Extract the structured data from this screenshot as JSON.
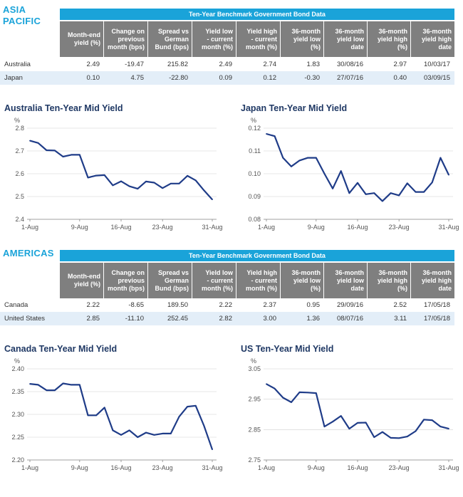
{
  "asia": {
    "region_label": [
      "ASIA",
      "PACIFIC"
    ],
    "table_title": "Ten-Year Benchmark Government Bond Data",
    "headers": [
      [
        "Month-end",
        "yield (%)"
      ],
      [
        "Change on",
        "previous",
        "month (bps)"
      ],
      [
        "Spread vs",
        "German",
        "Bund (bps)"
      ],
      [
        "Yield low",
        "- current",
        "month (%)"
      ],
      [
        "Yield high",
        "- current",
        "month (%)"
      ],
      [
        "36-month",
        "yield low",
        "(%)"
      ],
      [
        "36-month",
        "yield low",
        "date"
      ],
      [
        "36-month",
        "yield high",
        "(%)"
      ],
      [
        "36-month",
        "yield high",
        "date"
      ]
    ],
    "rows": [
      {
        "label": "Australia",
        "values": [
          "2.49",
          "-19.47",
          "215.82",
          "2.49",
          "2.74",
          "1.83",
          "30/08/16",
          "2.97",
          "10/03/17"
        ]
      },
      {
        "label": "Japan",
        "values": [
          "0.10",
          "4.75",
          "-22.80",
          "0.09",
          "0.12",
          "-0.30",
          "27/07/16",
          "0.40",
          "03/09/15"
        ]
      }
    ]
  },
  "americas": {
    "region_label": [
      "AMERICAS"
    ],
    "table_title": "Ten-Year Benchmark Government Bond Data",
    "headers": [
      [
        "Month-end",
        "yield (%)"
      ],
      [
        "Change on",
        "previous",
        "month (bps)"
      ],
      [
        "Spread vs",
        "German",
        "Bund (bps)"
      ],
      [
        "Yield low",
        "- current",
        "month (%)"
      ],
      [
        "Yield high",
        "- current",
        "month (%)"
      ],
      [
        "36-month",
        "yield low",
        "(%)"
      ],
      [
        "36-month",
        "yield low",
        "date"
      ],
      [
        "36-month",
        "yield high",
        "(%)"
      ],
      [
        "36-month",
        "yield high",
        "date"
      ]
    ],
    "rows": [
      {
        "label": "Canada",
        "values": [
          "2.22",
          "-8.65",
          "189.50",
          "2.22",
          "2.37",
          "0.95",
          "29/09/16",
          "2.52",
          "17/05/18"
        ]
      },
      {
        "label": "United States",
        "values": [
          "2.85",
          "-11.10",
          "252.45",
          "2.82",
          "3.00",
          "1.36",
          "08/07/16",
          "3.11",
          "17/05/18"
        ]
      }
    ]
  },
  "colors": {
    "accent": "#1aa3d9",
    "line": "#1f3c88",
    "header_bg": "#7f7f7f",
    "row_alt": "#e3eef8"
  },
  "chart_data": [
    {
      "type": "line",
      "title": "Australia Ten-Year Mid Yield",
      "ylabel": "%",
      "ylim": [
        2.4,
        2.8
      ],
      "yticks": [
        "2.4",
        "2.5",
        "2.6",
        "2.7",
        "2.8"
      ],
      "xticks": [
        "1-Aug",
        "9-Aug",
        "16-Aug",
        "23-Aug",
        "31-Aug"
      ],
      "xtick_index": [
        0,
        6,
        11,
        16,
        22
      ],
      "values": [
        2.745,
        2.735,
        2.703,
        2.702,
        2.675,
        2.683,
        2.683,
        2.583,
        2.592,
        2.594,
        2.549,
        2.567,
        2.545,
        2.534,
        2.566,
        2.561,
        2.537,
        2.557,
        2.557,
        2.591,
        2.571,
        2.527,
        2.487
      ]
    },
    {
      "type": "line",
      "title": "Japan Ten-Year Mid Yield",
      "ylabel": "%",
      "ylim": [
        0.08,
        0.12
      ],
      "yticks": [
        "0.08",
        "0.09",
        "0.10",
        "0.11",
        "0.12"
      ],
      "xticks": [
        "1-Aug",
        "9-Aug",
        "16-Aug",
        "23-Aug",
        "31-Aug"
      ],
      "xtick_index": [
        0,
        6,
        11,
        16,
        22
      ],
      "values": [
        0.1175,
        0.1165,
        0.107,
        0.1032,
        0.1058,
        0.107,
        0.107,
        0.1,
        0.0935,
        0.1012,
        0.0915,
        0.096,
        0.091,
        0.0915,
        0.088,
        0.0915,
        0.0905,
        0.0958,
        0.092,
        0.092,
        0.0962,
        0.107,
        0.0995
      ]
    },
    {
      "type": "line",
      "title": "Canada Ten-Year Mid Yield",
      "ylabel": "%",
      "ylim": [
        2.2,
        2.4
      ],
      "yticks": [
        "2.20",
        "2.25",
        "2.30",
        "2.35",
        "2.40"
      ],
      "xticks": [
        "1-Aug",
        "9-Aug",
        "16-Aug",
        "23-Aug",
        "31-Aug"
      ],
      "xtick_index": [
        0,
        6,
        11,
        16,
        22
      ],
      "values": [
        2.367,
        2.365,
        2.353,
        2.353,
        2.368,
        2.365,
        2.365,
        2.298,
        2.298,
        2.315,
        2.265,
        2.255,
        2.265,
        2.25,
        2.26,
        2.255,
        2.258,
        2.258,
        2.295,
        2.317,
        2.319,
        2.275,
        2.223
      ]
    },
    {
      "type": "line",
      "title": "US Ten-Year Mid Yield",
      "ylabel": "%",
      "ylim": [
        2.75,
        3.05
      ],
      "yticks": [
        "2.75",
        "2.85",
        "2.95",
        "3.05"
      ],
      "xticks": [
        "1-Aug",
        "9-Aug",
        "16-Aug",
        "23-Aug",
        "31-Aug"
      ],
      "xtick_index": [
        0,
        6,
        11,
        16,
        22
      ],
      "values": [
        3.0,
        2.985,
        2.955,
        2.94,
        2.973,
        2.972,
        2.97,
        2.86,
        2.876,
        2.895,
        2.853,
        2.872,
        2.873,
        2.825,
        2.842,
        2.823,
        2.822,
        2.827,
        2.845,
        2.883,
        2.881,
        2.86,
        2.853
      ]
    }
  ]
}
